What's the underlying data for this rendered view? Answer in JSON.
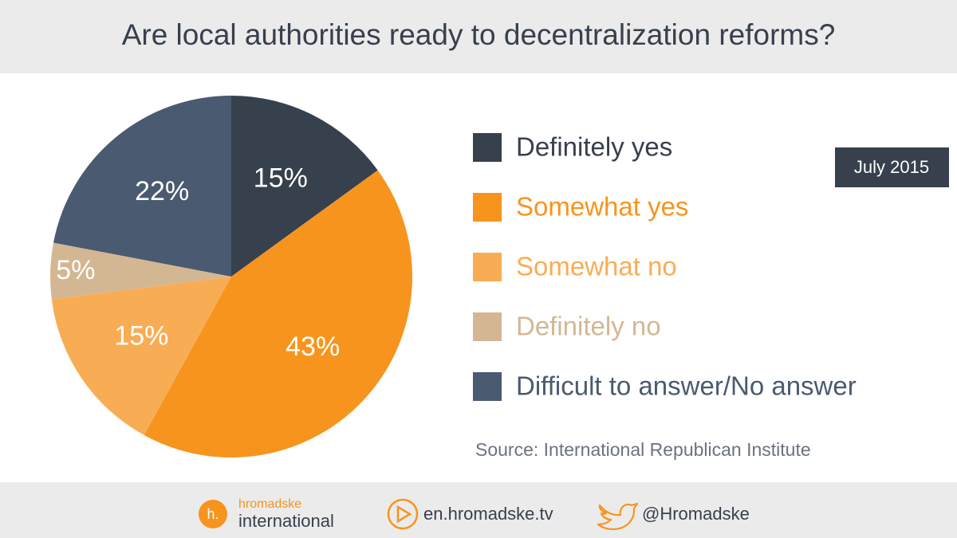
{
  "chart_data": {
    "type": "pie",
    "title": "Are local authorities ready to decentralization reforms?",
    "categories": [
      "Definitely yes",
      "Somewhat yes",
      "Somewhat no",
      "Definitely no",
      "Difficult to answer/No answer"
    ],
    "values": [
      15,
      43,
      15,
      5,
      22
    ],
    "value_labels": [
      "15%",
      "43%",
      "15%",
      "5%",
      "22%"
    ],
    "colors": [
      "#37404d",
      "#f7941d",
      "#f8ad55",
      "#d3b793",
      "#4a5a70"
    ],
    "annotation": "July 2015",
    "source": "Source: International Republican Institute"
  },
  "footer": {
    "logo_mark": "h.",
    "logo_top": "hromadske",
    "logo_bottom": "international",
    "website": "en.hromadske.tv",
    "twitter": "@Hromadske"
  }
}
